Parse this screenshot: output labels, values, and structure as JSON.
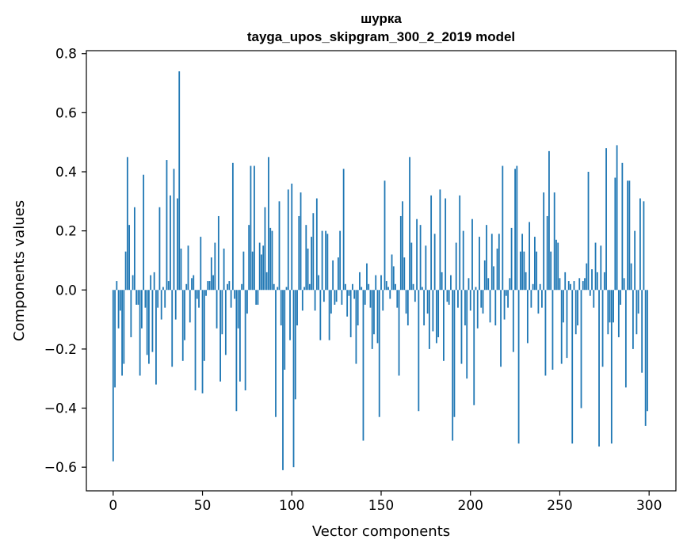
{
  "chart_data": {
    "type": "bar",
    "title": "шурка",
    "subtitle": "tayga_upos_skipgram_300_2_2019 model",
    "xlabel": "Vector components",
    "ylabel": "Components values",
    "xlim": [
      -15,
      315
    ],
    "ylim": [
      -0.68,
      0.81
    ],
    "xticks": [
      0,
      50,
      100,
      150,
      200,
      250,
      300
    ],
    "xtick_labels": [
      "0",
      "50",
      "100",
      "150",
      "200",
      "250",
      "300"
    ],
    "yticks": [
      -0.6,
      -0.4,
      -0.2,
      0.0,
      0.2,
      0.4,
      0.6,
      0.8
    ],
    "ytick_labels": [
      "−0.6",
      "−0.4",
      "−0.2",
      "0.0",
      "0.2",
      "0.4",
      "0.6",
      "0.8"
    ],
    "bar_color": "#1f77b4",
    "grid": false,
    "values": [
      -0.58,
      -0.33,
      0.03,
      -0.13,
      -0.07,
      -0.29,
      -0.25,
      0.13,
      0.45,
      0.22,
      -0.16,
      0.05,
      0.28,
      -0.05,
      -0.05,
      -0.29,
      -0.13,
      0.39,
      -0.06,
      -0.22,
      -0.25,
      0.05,
      -0.21,
      0.06,
      -0.32,
      -0.06,
      0.28,
      -0.1,
      0.01,
      -0.06,
      0.44,
      0.03,
      0.32,
      -0.26,
      0.41,
      -0.1,
      0.31,
      0.74,
      0.14,
      -0.24,
      -0.17,
      0.02,
      0.15,
      -0.11,
      0.04,
      0.05,
      -0.34,
      -0.03,
      -0.06,
      0.18,
      -0.35,
      -0.24,
      -0.02,
      0.03,
      0.03,
      0.11,
      0.05,
      0.16,
      -0.13,
      0.25,
      -0.31,
      -0.15,
      0.14,
      -0.22,
      0.02,
      0.03,
      -0.06,
      0.43,
      -0.03,
      -0.41,
      -0.13,
      -0.31,
      0.02,
      0.13,
      -0.34,
      -0.08,
      0.22,
      0.42,
      0.13,
      0.42,
      -0.05,
      -0.05,
      0.16,
      0.12,
      0.15,
      0.28,
      0.06,
      0.45,
      0.21,
      0.2,
      0.02,
      -0.43,
      0.01,
      0.3,
      -0.12,
      -0.61,
      -0.27,
      0.01,
      0.34,
      -0.17,
      0.36,
      -0.6,
      -0.37,
      -0.12,
      0.25,
      0.33,
      -0.07,
      0.01,
      0.22,
      0.14,
      0.02,
      0.18,
      0.26,
      -0.07,
      0.31,
      0.05,
      -0.17,
      0.2,
      -0.04,
      0.2,
      0.19,
      -0.17,
      -0.08,
      0.1,
      -0.05,
      -0.04,
      0.11,
      0.2,
      -0.05,
      0.41,
      0.02,
      -0.09,
      -0.02,
      -0.16,
      0.02,
      -0.03,
      -0.25,
      -0.12,
      0.06,
      0.01,
      -0.51,
      -0.05,
      0.09,
      0.02,
      -0.06,
      -0.2,
      -0.15,
      0.05,
      -0.18,
      -0.43,
      0.05,
      -0.07,
      0.37,
      0.03,
      0.01,
      -0.03,
      0.12,
      0.08,
      0.02,
      -0.06,
      -0.29,
      0.25,
      0.3,
      0.11,
      -0.08,
      -0.12,
      0.45,
      0.16,
      0.02,
      -0.04,
      0.24,
      -0.41,
      0.22,
      0.01,
      -0.12,
      0.15,
      -0.08,
      -0.2,
      0.32,
      -0.14,
      0.19,
      -0.18,
      -0.16,
      0.34,
      0.06,
      -0.24,
      0.31,
      -0.04,
      -0.05,
      0.05,
      -0.51,
      -0.43,
      0.16,
      -0.06,
      0.32,
      -0.25,
      0.2,
      -0.12,
      -0.3,
      0.04,
      -0.07,
      0.24,
      -0.39,
      0.01,
      -0.13,
      0.18,
      -0.06,
      -0.08,
      0.1,
      0.22,
      0.04,
      -0.11,
      0.19,
      0.08,
      -0.12,
      0.14,
      0.19,
      -0.26,
      0.42,
      -0.1,
      -0.02,
      -0.06,
      0.04,
      0.21,
      -0.21,
      0.41,
      0.42,
      -0.52,
      0.13,
      0.19,
      0.13,
      0.06,
      -0.18,
      0.23,
      -0.06,
      0.02,
      0.18,
      0.13,
      -0.08,
      0.02,
      -0.06,
      0.33,
      -0.29,
      0.25,
      0.47,
      0.13,
      -0.27,
      0.33,
      0.17,
      0.16,
      0.04,
      -0.25,
      -0.11,
      0.06,
      -0.23,
      0.03,
      0.02,
      -0.52,
      0.03,
      -0.15,
      -0.12,
      0.04,
      -0.4,
      0.03,
      0.04,
      0.09,
      0.4,
      -0.02,
      0.07,
      -0.06,
      0.16,
      0.06,
      -0.53,
      0.15,
      -0.26,
      0.06,
      0.48,
      -0.15,
      -0.11,
      -0.52,
      -0.11,
      0.38,
      0.49,
      -0.16,
      -0.05,
      0.43,
      0.04,
      -0.33,
      0.37,
      0.37,
      0.09,
      -0.2,
      0.2,
      -0.15,
      -0.08,
      0.31,
      -0.28,
      0.3,
      -0.46,
      -0.41
    ]
  }
}
